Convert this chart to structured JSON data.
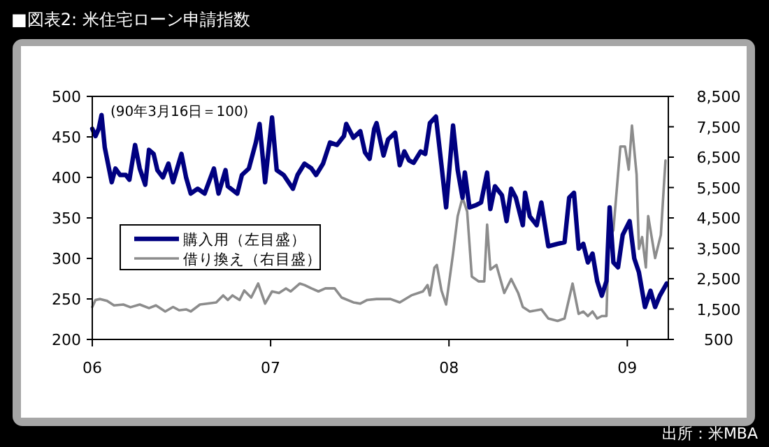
{
  "chart_data": {
    "type": "line",
    "title": "■図表2: 米住宅ローン申請指数",
    "annotations": [
      "(90年3月16日＝100)",
      "出所：米MBA"
    ],
    "legend": "left",
    "xlim": [
      2006,
      2009.23
    ],
    "xticks": [
      {
        "value": 2006,
        "label": "06"
      },
      {
        "value": 2007,
        "label": "07"
      },
      {
        "value": 2008,
        "label": "08"
      },
      {
        "value": 2009,
        "label": "09"
      }
    ],
    "ylim": [
      200,
      500
    ],
    "yticks": [
      200,
      250,
      300,
      350,
      400,
      450,
      500
    ],
    "y2lim": [
      500,
      8500
    ],
    "y2ticks": [
      {
        "value": 500,
        "label": "500"
      },
      {
        "value": 1500,
        "label": "1,500"
      },
      {
        "value": 2500,
        "label": "2,500"
      },
      {
        "value": 3500,
        "label": "3,500"
      },
      {
        "value": 4500,
        "label": "4,500"
      },
      {
        "value": 5500,
        "label": "5,500"
      },
      {
        "value": 6500,
        "label": "6,500"
      },
      {
        "value": 7500,
        "label": "7,500"
      },
      {
        "value": 8500,
        "label": "8,500"
      }
    ],
    "series": [
      {
        "name": "購入用（左目盛）",
        "color": "#000080",
        "x": [
          2006,
          2006.018,
          2006.036,
          2006.052,
          2006.07,
          2006.109,
          2006.13,
          2006.156,
          2006.188,
          2006.208,
          2006.24,
          2006.266,
          2006.297,
          2006.318,
          2006.344,
          2006.365,
          2006.396,
          2006.427,
          2006.453,
          2006.5,
          2006.526,
          2006.552,
          2006.591,
          2006.63,
          2006.682,
          2006.708,
          2006.747,
          2006.76,
          2006.813,
          2006.839,
          2006.878,
          2006.917,
          2006.938,
          2006.969,
          2007.008,
          2007.034,
          2007.073,
          2007.125,
          2007.151,
          2007.19,
          2007.229,
          2007.255,
          2007.294,
          2007.333,
          2007.372,
          2007.411,
          2007.424,
          2007.464,
          2007.503,
          2007.529,
          2007.555,
          2007.581,
          2007.594,
          2007.633,
          2007.659,
          2007.698,
          2007.724,
          2007.75,
          2007.776,
          2007.802,
          2007.841,
          2007.867,
          2007.893,
          2007.927,
          2007.958,
          2007.984,
          2008.023,
          2008.049,
          2008.076,
          2008.089,
          2008.115,
          2008.154,
          2008.18,
          2008.214,
          2008.232,
          2008.258,
          2008.297,
          2008.323,
          2008.349,
          2008.375,
          2008.414,
          2008.427,
          2008.453,
          2008.492,
          2008.518,
          2008.557,
          2008.609,
          2008.648,
          2008.674,
          2008.701,
          2008.727,
          2008.753,
          2008.779,
          2008.805,
          2008.831,
          2008.857,
          2008.883,
          2008.901,
          2008.922,
          2008.948,
          2008.974,
          2009.013,
          2009.039,
          2009.065,
          2009.099,
          2009.13,
          2009.156,
          2009.182,
          2009.221
        ],
        "values": [
          460,
          451,
          460,
          477,
          437,
          394,
          411,
          403,
          403,
          397,
          440,
          411,
          391,
          434,
          429,
          409,
          400,
          417,
          394,
          429,
          400,
          380,
          386,
          380,
          411,
          380,
          409,
          389,
          380,
          403,
          411,
          443,
          466,
          394,
          474,
          409,
          403,
          386,
          403,
          417,
          411,
          403,
          417,
          443,
          440,
          451,
          466,
          449,
          457,
          431,
          423,
          460,
          467,
          427,
          447,
          455,
          415,
          432,
          421,
          418,
          432,
          429,
          467,
          475,
          415,
          363,
          464,
          409,
          375,
          406,
          363,
          366,
          369,
          406,
          361,
          389,
          378,
          346,
          386,
          375,
          341,
          381,
          352,
          341,
          369,
          315,
          318,
          320,
          375,
          381,
          312,
          318,
          295,
          306,
          272,
          254,
          272,
          363,
          295,
          289,
          329,
          346,
          300,
          283,
          240,
          260,
          240,
          254,
          269
        ]
      },
      {
        "name": "借り換え（右目盛）",
        "color": "#8c8c8c",
        "axis": "y2",
        "x": [
          2006,
          2006.018,
          2006.044,
          2006.083,
          2006.122,
          2006.174,
          2006.214,
          2006.266,
          2006.318,
          2006.357,
          2006.409,
          2006.453,
          2006.487,
          2006.526,
          2006.552,
          2006.604,
          2006.643,
          2006.695,
          2006.734,
          2006.76,
          2006.786,
          2006.826,
          2006.852,
          2006.891,
          2006.93,
          2006.969,
          2007.008,
          2007.047,
          2007.086,
          2007.112,
          2007.164,
          2007.19,
          2007.229,
          2007.268,
          2007.307,
          2007.359,
          2007.398,
          2007.464,
          2007.503,
          2007.542,
          2007.594,
          2007.672,
          2007.724,
          2007.789,
          2007.854,
          2007.88,
          2007.893,
          2007.919,
          2007.932,
          2007.958,
          2007.984,
          2008.023,
          2008.049,
          2008.076,
          2008.102,
          2008.128,
          2008.167,
          2008.198,
          2008.214,
          2008.232,
          2008.266,
          2008.31,
          2008.349,
          2008.388,
          2008.414,
          2008.453,
          2008.518,
          2008.557,
          2008.609,
          2008.648,
          2008.693,
          2008.727,
          2008.753,
          2008.779,
          2008.805,
          2008.831,
          2008.857,
          2008.883,
          2008.896,
          2008.922,
          2008.961,
          2008.987,
          2009.008,
          2009.026,
          2009.052,
          2009.065,
          2009.083,
          2009.104,
          2009.117,
          2009.156,
          2009.188,
          2009.214
        ],
        "values": [
          1570,
          1800,
          1830,
          1770,
          1620,
          1650,
          1560,
          1650,
          1530,
          1620,
          1420,
          1570,
          1460,
          1490,
          1420,
          1650,
          1680,
          1720,
          1950,
          1800,
          1950,
          1800,
          2110,
          1880,
          2340,
          1680,
          2080,
          2030,
          2180,
          2080,
          2340,
          2290,
          2180,
          2080,
          2180,
          2180,
          1880,
          1720,
          1680,
          1800,
          1830,
          1830,
          1720,
          1950,
          2080,
          2290,
          1950,
          2870,
          2950,
          2110,
          1650,
          3330,
          4560,
          5170,
          4710,
          2570,
          2410,
          2410,
          4280,
          2800,
          2950,
          2030,
          2490,
          2030,
          1570,
          1420,
          1490,
          1190,
          1110,
          1190,
          2340,
          1340,
          1420,
          1270,
          1420,
          1190,
          1270,
          1270,
          3790,
          4100,
          6850,
          6850,
          6090,
          7540,
          5930,
          3480,
          3870,
          2870,
          4560,
          3180,
          3940,
          6390
        ]
      }
    ]
  }
}
